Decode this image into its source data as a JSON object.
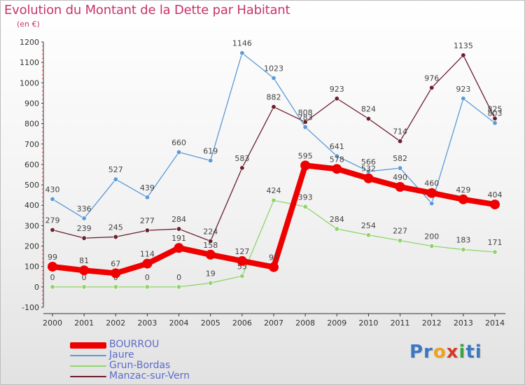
{
  "title": "Evolution du Montant de la Dette par Habitant",
  "unit": "(en €)",
  "brand": {
    "parts": [
      "Pr",
      "o",
      "x",
      "i",
      "ti"
    ],
    "colors": [
      "#3a78c2",
      "#f0a020",
      "#d33a2a",
      "#3aa345",
      "#3a78c2"
    ]
  },
  "chart_data": {
    "type": "line",
    "title": "Evolution du Montant de la Dette par Habitant",
    "ylabel": "(en €)",
    "xlabel": "",
    "x": [
      "2000",
      "2001",
      "2002",
      "2003",
      "2004",
      "2005",
      "2006",
      "2007",
      "2008",
      "2009",
      "2010",
      "2011",
      "2012",
      "2013",
      "2014"
    ],
    "yticks": [
      "-100",
      "0",
      "100",
      "200",
      "300",
      "400",
      "500",
      "600",
      "700",
      "800",
      "900",
      "1000",
      "1100",
      "1200"
    ],
    "ylim": [
      -100,
      1200
    ],
    "grid": false,
    "legend": "bottom-left",
    "series": [
      {
        "name": "Grun-Bordas",
        "color": "#8fd46a",
        "values": [
          0,
          0,
          0,
          0,
          0,
          19,
          53,
          424,
          393,
          284,
          254,
          227,
          200,
          183,
          171
        ],
        "labels": [
          "0",
          "0",
          "0",
          "0",
          "0",
          "19",
          "53",
          "424",
          "393",
          "284",
          "254",
          "227",
          "200",
          "183",
          "171"
        ]
      },
      {
        "name": "Manzac-sur-Vern",
        "color": "#6b1f2e",
        "values": [
          279,
          239,
          245,
          277,
          284,
          224,
          583,
          882,
          808,
          923,
          824,
          714,
          976,
          1135,
          825
        ],
        "labels": [
          "279",
          "239",
          "245",
          "277",
          "284",
          "224",
          "583",
          "882",
          "808",
          "923",
          "824",
          "714",
          "976",
          "1135",
          "825"
        ]
      },
      {
        "name": "Jaure",
        "color": "#5a9ad6",
        "values": [
          430,
          336,
          527,
          439,
          660,
          619,
          1146,
          1023,
          783,
          641,
          566,
          582,
          409,
          923,
          803
        ],
        "labels": [
          "430",
          "336",
          "527",
          "439",
          "660",
          "619",
          "1146",
          "1023",
          "783",
          "641",
          "566",
          "582",
          "409",
          "923",
          "803"
        ]
      },
      {
        "name": "BOURROU",
        "color": "#ee0000",
        "values": [
          99,
          81,
          67,
          114,
          191,
          158,
          127,
          97,
          595,
          578,
          532,
          490,
          460,
          429,
          404
        ],
        "labels": [
          "99",
          "81",
          "67",
          "114",
          "191",
          "158",
          "127",
          "97",
          "595",
          "578",
          "532",
          "490",
          "460",
          "429",
          "404"
        ]
      }
    ],
    "legend_order": [
      "BOURROU",
      "Jaure",
      "Grun-Bordas",
      "Manzac-sur-Vern"
    ]
  }
}
